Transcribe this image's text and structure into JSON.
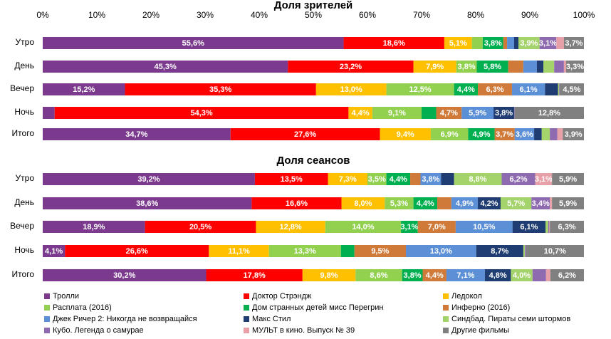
{
  "chart_data": [
    {
      "type": "bar",
      "orientation": "horizontal",
      "stacked": true,
      "title": "Доля зрителей",
      "categories": [
        "Утро",
        "День",
        "Вечер",
        "Ночь",
        "Итого"
      ],
      "xlim": [
        0,
        100
      ],
      "xticks": [
        {
          "value": 0,
          "label": "0%"
        },
        {
          "value": 10,
          "label": "10%"
        },
        {
          "value": 20,
          "label": "20%"
        },
        {
          "value": 30,
          "label": "30%"
        },
        {
          "value": 40,
          "label": "40%"
        },
        {
          "value": 50,
          "label": "50%"
        },
        {
          "value": 60,
          "label": "60%"
        },
        {
          "value": 70,
          "label": "70%"
        },
        {
          "value": 80,
          "label": "80%"
        },
        {
          "value": 90,
          "label": "90%"
        },
        {
          "value": 100,
          "label": "100%"
        }
      ],
      "legend": "bottom",
      "series": [
        {
          "name": "Тролли",
          "color": "#7b3a8e",
          "values": [
            55.6,
            45.3,
            15.2,
            2.2,
            34.7
          ],
          "value_labels": [
            "55,6%",
            "45,3%",
            "15,2%",
            null,
            "34,7%"
          ]
        },
        {
          "name": "Доктор Стрэндж",
          "color": "#ff0000",
          "values": [
            18.6,
            23.2,
            35.3,
            54.3,
            27.6
          ],
          "value_labels": [
            "18,6%",
            "23,2%",
            "35,3%",
            "54,3%",
            "27,6%"
          ]
        },
        {
          "name": "Ледокол",
          "color": "#ffc000",
          "values": [
            5.1,
            7.9,
            13.0,
            4.4,
            9.4
          ],
          "value_labels": [
            "5,1%",
            "7,9%",
            "13,0%",
            "4,4%",
            "9,4%"
          ]
        },
        {
          "name": "Расплата (2016)",
          "color": "#92d050",
          "values": [
            2.0,
            3.8,
            12.5,
            9.1,
            6.9
          ],
          "value_labels": [
            null,
            "3,8%",
            "12,5%",
            "9,1%",
            "6,9%"
          ]
        },
        {
          "name": "Дом странных детей мисс Перегрин",
          "color": "#00b050",
          "values": [
            3.8,
            5.8,
            4.4,
            2.7,
            4.9
          ],
          "value_labels": [
            "3,8%",
            "5,8%",
            "4,4%",
            null,
            "4,9%"
          ]
        },
        {
          "name": "Инферно (2016)",
          "color": "#d07a3a",
          "values": [
            0.7,
            2.8,
            6.3,
            4.7,
            3.7
          ],
          "value_labels": [
            null,
            null,
            "6,3%",
            "4,7%",
            "3,7%"
          ]
        },
        {
          "name": "Джек Ричер 2: Никогда не возвращайся",
          "color": "#5b8fd6",
          "values": [
            1.3,
            2.5,
            6.1,
            5.9,
            3.6
          ],
          "value_labels": [
            null,
            null,
            "6,1%",
            "5,9%",
            "3,6%"
          ]
        },
        {
          "name": "Макс Стил",
          "color": "#1f3c73",
          "values": [
            0.8,
            1.2,
            2.4,
            3.8,
            1.4
          ],
          "value_labels": [
            null,
            null,
            null,
            "3,8%",
            null
          ]
        },
        {
          "name": "Синдбад. Пираты семи штормов",
          "color": "#a5d36b",
          "values": [
            3.9,
            2.0,
            0.2,
            0,
            1.5
          ],
          "value_labels": [
            "3,9%",
            null,
            null,
            null,
            null
          ]
        },
        {
          "name": "Кубо. Легенда о самурае",
          "color": "#8e6bb0",
          "values": [
            3.1,
            1.8,
            0.1,
            0.1,
            1.4
          ],
          "value_labels": [
            "3,1%",
            null,
            null,
            null,
            null
          ]
        },
        {
          "name": "МУЛЬТ в кино. Выпуск № 39",
          "color": "#e8a0a8",
          "values": [
            1.4,
            0.4,
            0,
            0,
            1.0
          ],
          "value_labels": [
            null,
            null,
            null,
            null,
            null
          ]
        },
        {
          "name": "Другие фильмы",
          "color": "#808080",
          "values": [
            3.7,
            3.3,
            4.5,
            12.8,
            3.9
          ],
          "value_labels": [
            "3,7%",
            "3,3%",
            "4,5%",
            "12,8%",
            "3,9%"
          ]
        }
      ]
    },
    {
      "type": "bar",
      "orientation": "horizontal",
      "stacked": true,
      "title": "Доля сеансов",
      "categories": [
        "Утро",
        "День",
        "Вечер",
        "Ночь",
        "Итого"
      ],
      "xlim": [
        0,
        100
      ],
      "series": [
        {
          "values": [
            39.2,
            38.6,
            18.9,
            4.1,
            30.2
          ],
          "value_labels": [
            "39,2%",
            "38,6%",
            "18,9%",
            "4,1%",
            "30,2%"
          ]
        },
        {
          "values": [
            13.5,
            16.6,
            20.5,
            26.6,
            17.8
          ],
          "value_labels": [
            "13,5%",
            "16,6%",
            "20,5%",
            "26,6%",
            "17,8%"
          ]
        },
        {
          "values": [
            7.3,
            8.0,
            12.8,
            11.1,
            9.8
          ],
          "value_labels": [
            "7,3%",
            "8,0%",
            "12,8%",
            "11,1%",
            "9,8%"
          ]
        },
        {
          "values": [
            3.5,
            5.3,
            14.0,
            13.3,
            8.6
          ],
          "value_labels": [
            "3,5%",
            "5,3%",
            "14,0%",
            "13,3%",
            "8,6%"
          ]
        },
        {
          "values": [
            4.4,
            4.4,
            3.1,
            2.5,
            3.8
          ],
          "value_labels": [
            "4,4%",
            "4,4%",
            "3,1%",
            null,
            "3,8%"
          ]
        },
        {
          "values": [
            1.9,
            2.6,
            7.0,
            9.5,
            4.4
          ],
          "value_labels": [
            null,
            null,
            "7,0%",
            "9,5%",
            "4,4%"
          ]
        },
        {
          "values": [
            3.8,
            4.9,
            10.5,
            13.0,
            7.1
          ],
          "value_labels": [
            "3,8%",
            "4,9%",
            "10,5%",
            "13,0%",
            "7,1%"
          ]
        },
        {
          "values": [
            2.4,
            4.2,
            6.1,
            8.7,
            4.8
          ],
          "value_labels": [
            null,
            "4,2%",
            "6,1%",
            "8,7%",
            "4,8%"
          ]
        },
        {
          "values": [
            8.8,
            5.7,
            0.5,
            0.3,
            4.0
          ],
          "value_labels": [
            "8,8%",
            "5,7%",
            null,
            null,
            "4,0%"
          ]
        },
        {
          "values": [
            6.2,
            3.4,
            0.2,
            0.2,
            2.5
          ],
          "value_labels": [
            "6,2%",
            "3,4%",
            null,
            null,
            null
          ]
        },
        {
          "values": [
            3.1,
            0.4,
            0.1,
            0,
            0.8
          ],
          "value_labels": [
            "3,1%",
            null,
            null,
            null,
            null
          ]
        },
        {
          "values": [
            5.9,
            5.9,
            6.3,
            10.7,
            6.2
          ],
          "value_labels": [
            "5,9%",
            "5,9%",
            "6,3%",
            "10,7%",
            "6,2%"
          ]
        }
      ]
    }
  ]
}
